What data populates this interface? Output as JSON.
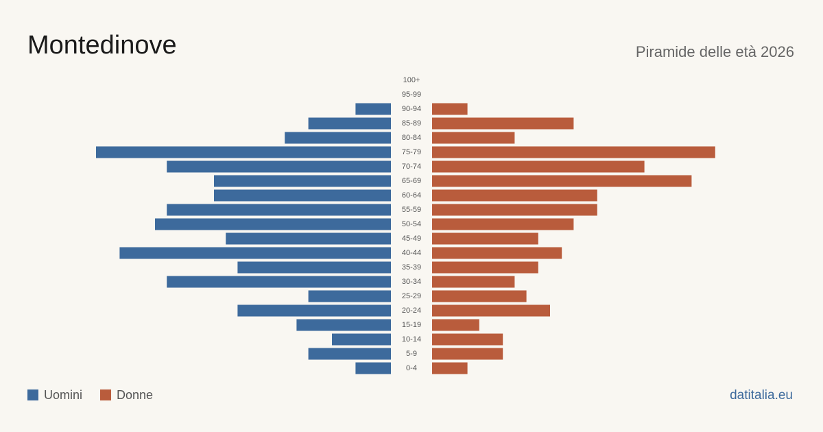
{
  "chart_data": {
    "type": "pyramid",
    "title": "Montedinove",
    "subtitle": "Piramide delle età 2026",
    "source": "datitalia.eu",
    "categories": [
      "100+",
      "95-99",
      "90-94",
      "85-89",
      "80-84",
      "75-79",
      "70-74",
      "65-69",
      "60-64",
      "55-59",
      "50-54",
      "45-49",
      "40-44",
      "35-39",
      "30-34",
      "25-29",
      "20-24",
      "15-19",
      "10-14",
      "5-9",
      "0-4"
    ],
    "series": [
      {
        "name": "Uomini",
        "color": "#3d6a9c",
        "values": [
          0,
          0,
          3,
          7,
          9,
          25,
          19,
          15,
          15,
          19,
          20,
          14,
          23,
          13,
          19,
          7,
          13,
          8,
          5,
          7,
          3
        ]
      },
      {
        "name": "Donne",
        "color": "#b95c3c",
        "values": [
          0,
          0,
          3,
          12,
          7,
          24,
          18,
          22,
          14,
          14,
          12,
          9,
          11,
          9,
          7,
          8,
          10,
          4,
          6,
          6,
          3
        ]
      }
    ]
  }
}
